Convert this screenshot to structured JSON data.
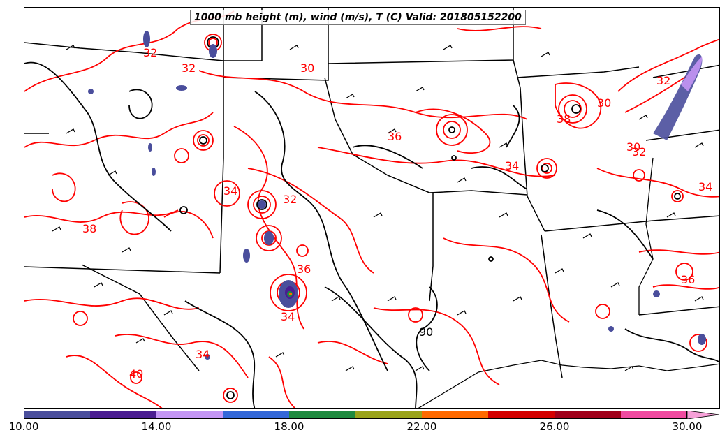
{
  "title": "1000 mb height (m), wind (m/s), T (C) Valid: 201805152200",
  "colorbar": {
    "tick_labels": [
      "10.00",
      "14.00",
      "18.00",
      "22.00",
      "26.00",
      "30.00"
    ],
    "colors": [
      "#4a4e9c",
      "#4b1d91",
      "#c496f5",
      "#3468d8",
      "#1f8a3f",
      "#9aa31a",
      "#ff6a00",
      "#d40000",
      "#a0001a",
      "#f04aa0",
      "#f7a0d8"
    ]
  },
  "contour_labels": [
    "30",
    "32",
    "30",
    "38",
    "32",
    "36",
    "38",
    "34",
    "30",
    "36",
    "32",
    "34",
    "40",
    "90",
    "36",
    "34",
    "34",
    "32",
    "32",
    "34"
  ],
  "colors": {
    "temperature_contour": "#ff0000",
    "height_contour": "#000000",
    "borders": "#000000"
  }
}
